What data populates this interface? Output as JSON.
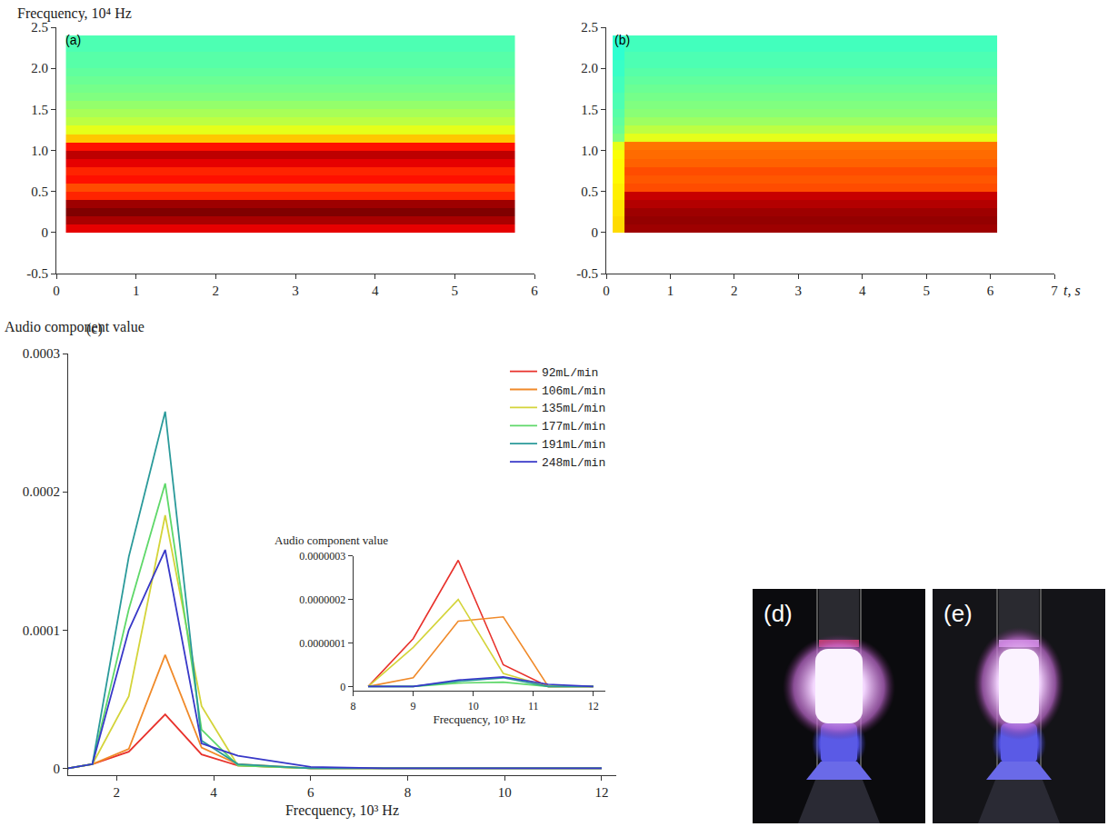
{
  "chart_data": [
    {
      "type": "heatmap",
      "panel_label": "(a)",
      "y_label": "Frecquency, 10⁴ Hz",
      "x": [
        0.12,
        5.75
      ],
      "y": [
        0,
        0.1,
        0.2,
        0.3,
        0.4,
        0.5,
        0.6,
        0.7,
        0.8,
        0.9,
        1.0,
        1.1,
        1.2,
        1.3,
        1.4,
        1.5,
        1.6,
        1.7,
        1.8,
        1.9,
        2.0,
        2.1,
        2.2,
        2.3,
        2.4
      ],
      "cells": [
        [
          0.9
        ],
        [
          0.96
        ],
        [
          1.0
        ],
        [
          0.97
        ],
        [
          0.84
        ],
        [
          0.8
        ],
        [
          0.86
        ],
        [
          0.84
        ],
        [
          0.9
        ],
        [
          0.94
        ],
        [
          0.86
        ],
        [
          0.68
        ],
        [
          0.6
        ],
        [
          0.56
        ],
        [
          0.54
        ],
        [
          0.52
        ],
        [
          0.5
        ],
        [
          0.49
        ],
        [
          0.48
        ],
        [
          0.47
        ],
        [
          0.46
        ],
        [
          0.46
        ],
        [
          0.45
        ],
        [
          0.45
        ]
      ],
      "zlim": [
        0,
        1
      ],
      "xlim": [
        0,
        6
      ],
      "xticks": [
        0,
        1,
        2,
        3,
        4,
        5,
        6
      ],
      "ylim": [
        -0.5,
        2.5
      ],
      "yticks": [
        -0.5,
        0,
        0.5,
        {
          "value": 1,
          "label": "1.0"
        },
        1.5,
        {
          "value": 2,
          "label": "2.0"
        },
        2.5
      ]
    },
    {
      "type": "heatmap",
      "panel_label": "(b)",
      "x_label": "t, s",
      "x": [
        0.1,
        0.28,
        6.1
      ],
      "y": [
        0,
        0.1,
        0.2,
        0.3,
        0.4,
        0.5,
        0.6,
        0.7,
        0.8,
        0.9,
        1.0,
        1.1,
        1.2,
        1.3,
        1.4,
        1.5,
        1.6,
        1.7,
        1.8,
        1.9,
        2.0,
        2.1,
        2.2,
        2.3,
        2.4
      ],
      "cells": [
        [
          0.66,
          0.97
        ],
        [
          0.66,
          0.98
        ],
        [
          0.65,
          0.97
        ],
        [
          0.65,
          0.95
        ],
        [
          0.64,
          0.93
        ],
        [
          0.64,
          0.8
        ],
        [
          0.63,
          0.79
        ],
        [
          0.63,
          0.8
        ],
        [
          0.63,
          0.78
        ],
        [
          0.62,
          0.77
        ],
        [
          0.6,
          0.76
        ],
        [
          0.5,
          0.6
        ],
        [
          0.48,
          0.56
        ],
        [
          0.47,
          0.53
        ],
        [
          0.46,
          0.51
        ],
        [
          0.45,
          0.5
        ],
        [
          0.45,
          0.49
        ],
        [
          0.44,
          0.48
        ],
        [
          0.44,
          0.47
        ],
        [
          0.43,
          0.46
        ],
        [
          0.43,
          0.45
        ],
        [
          0.42,
          0.45
        ],
        [
          0.42,
          0.44
        ],
        [
          0.42,
          0.44
        ]
      ],
      "zlim": [
        0,
        1
      ],
      "xlim": [
        0,
        7
      ],
      "xticks": [
        0,
        1,
        2,
        3,
        4,
        5,
        6,
        7
      ],
      "ylim": [
        -0.5,
        2.5
      ],
      "yticks": [
        -0.5,
        0,
        0.5,
        {
          "value": 1,
          "label": "1.0"
        },
        1.5,
        {
          "value": 2,
          "label": "2.0"
        },
        2.5
      ]
    },
    {
      "type": "line",
      "panel_label": "(c)",
      "y_label": "Audio component value",
      "x_label": "Frecquency, 10³ Hz",
      "x": [
        1,
        1.5,
        2.25,
        3,
        3.75,
        4.5,
        6,
        7.5,
        9,
        10.5,
        12
      ],
      "series": [
        {
          "name": "92mL/min",
          "color": "#e8322c",
          "values": [
            0,
            3e-06,
            1.2e-05,
            3.9e-05,
            1e-05,
            2e-06,
            0,
            0,
            0,
            0,
            0
          ]
        },
        {
          "name": "106mL/min",
          "color": "#f08a2a",
          "values": [
            0,
            3e-06,
            1.4e-05,
            8.2e-05,
            1.5e-05,
            3e-06,
            0,
            0,
            0,
            0,
            0
          ]
        },
        {
          "name": "135mL/min",
          "color": "#d4d43a",
          "values": [
            0,
            3e-06,
            5.2e-05,
            0.000183,
            4.5e-05,
            2e-06,
            0,
            0,
            0,
            0,
            0
          ]
        },
        {
          "name": "177mL/min",
          "color": "#5fd86a",
          "values": [
            0,
            3e-06,
            0.000115,
            0.000206,
            2.8e-05,
            2e-06,
            0,
            0,
            0,
            0,
            0
          ]
        },
        {
          "name": "191mL/min",
          "color": "#2a9a9a",
          "values": [
            0,
            3e-06,
            0.000153,
            0.000258,
            2e-05,
            3e-06,
            0,
            0,
            0,
            0,
            0
          ]
        },
        {
          "name": "248mL/min",
          "color": "#3838c8",
          "values": [
            0,
            3e-06,
            0.0001,
            0.000158,
            1.8e-05,
            9e-06,
            1e-06,
            0,
            0,
            0,
            0
          ]
        }
      ],
      "xlim": [
        1,
        12.3
      ],
      "xticks": [
        2,
        4,
        6,
        8,
        10,
        12
      ],
      "ylim": [
        -5e-06,
        0.0003
      ],
      "yticks": [
        0,
        0.0001,
        0.0002,
        0.0003
      ],
      "legend": "top right"
    },
    {
      "type": "line",
      "y_label": "Audio component value",
      "x_label": "Frecquency, 10³ Hz",
      "x": [
        8.25,
        9,
        9.75,
        10.5,
        11.25,
        12
      ],
      "series": [
        {
          "color": "#e8322c",
          "values": [
            0,
            1.1e-07,
            2.9e-07,
            5e-08,
            0,
            0
          ]
        },
        {
          "color": "#f08a2a",
          "values": [
            0,
            2e-08,
            1.5e-07,
            1.6e-07,
            0,
            0
          ]
        },
        {
          "color": "#d4d43a",
          "values": [
            0,
            9e-08,
            2e-07,
            3e-08,
            0,
            0
          ]
        },
        {
          "color": "#5fd86a",
          "values": [
            0,
            0,
            8e-09,
            1e-08,
            0,
            0
          ]
        },
        {
          "color": "#2a9a9a",
          "values": [
            0,
            0,
            1.2e-08,
            2e-08,
            0,
            0
          ]
        },
        {
          "color": "#3838c8",
          "values": [
            0,
            0,
            1.5e-08,
            2.2e-08,
            5e-09,
            0
          ]
        }
      ],
      "xlim": [
        8,
        12.2
      ],
      "xticks": [
        8,
        9,
        10,
        11,
        12
      ],
      "ylim": [
        -1e-08,
        3e-07
      ],
      "yticks": [
        0,
        {
          "value": 1e-07,
          "label": "0.0000001"
        },
        {
          "value": 2e-07,
          "label": "0.0000002"
        },
        {
          "value": 3e-07,
          "label": "0.0000003"
        }
      ]
    }
  ],
  "photos": [
    {
      "label": "(d)"
    },
    {
      "label": "(e)"
    }
  ]
}
